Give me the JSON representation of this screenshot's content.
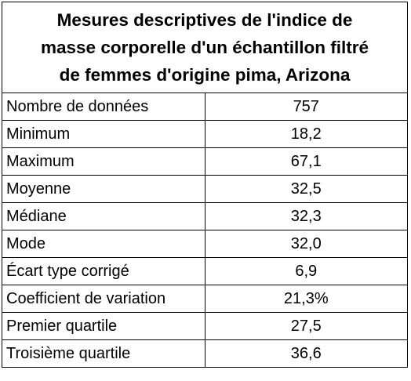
{
  "table": {
    "title_lines": [
      "Mesures descriptives de l'indice de",
      "masse corporelle d'un échantillon filtré",
      "de femmes d'origine pima, Arizona"
    ],
    "rows": [
      {
        "label": "Nombre de données",
        "value": "757"
      },
      {
        "label": "Minimum",
        "value": "18,2"
      },
      {
        "label": "Maximum",
        "value": "67,1"
      },
      {
        "label": "Moyenne",
        "value": "32,5"
      },
      {
        "label": "Médiane",
        "value": "32,3"
      },
      {
        "label": "Mode",
        "value": "32,0"
      },
      {
        "label": "Écart type corrigé",
        "value": "6,9"
      },
      {
        "label": "Coefficient de variation",
        "value": "21,3%"
      },
      {
        "label": "Premier quartile",
        "value": "27,5"
      },
      {
        "label": "Troisième quartile",
        "value": "36,6"
      }
    ]
  }
}
